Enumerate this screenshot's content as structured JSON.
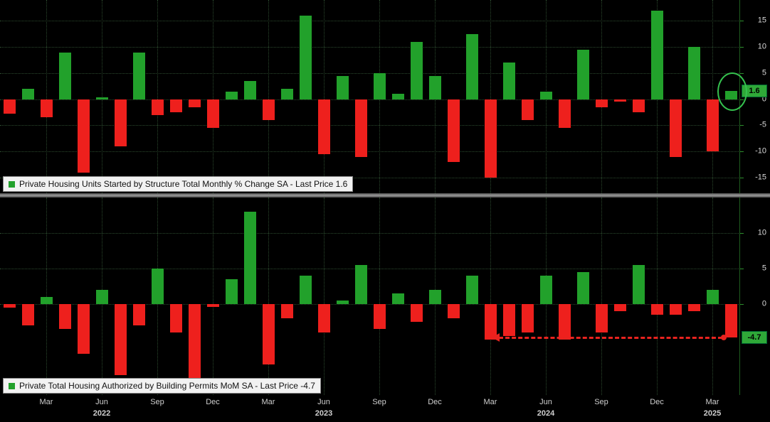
{
  "colors": {
    "background": "#000000",
    "up_bar": "#22a12b",
    "down_bar": "#ee201d",
    "grid": "#2c4a2e",
    "axis_text": "#cfcfcf",
    "last_price_box": "#2fa838",
    "legend_background": "#f2f2f2",
    "legend_text": "#111111",
    "annotation_circle": "#35c14e",
    "annotation_arrow": "#e8231f",
    "divider": "#9a9a9a"
  },
  "x_axis": {
    "months": [
      "Jan 2022",
      "Feb 2022",
      "Mar 2022",
      "Apr 2022",
      "May 2022",
      "Jun 2022",
      "Jul 2022",
      "Aug 2022",
      "Sep 2022",
      "Oct 2022",
      "Nov 2022",
      "Dec 2022",
      "Jan 2023",
      "Feb 2023",
      "Mar 2023",
      "Apr 2023",
      "May 2023",
      "Jun 2023",
      "Jul 2023",
      "Aug 2023",
      "Sep 2023",
      "Oct 2023",
      "Nov 2023",
      "Dec 2023",
      "Jan 2024",
      "Feb 2024",
      "Mar 2024",
      "Apr 2024",
      "May 2024",
      "Jun 2024",
      "Jul 2024",
      "Aug 2024",
      "Sep 2024",
      "Oct 2024",
      "Nov 2024",
      "Dec 2024",
      "Jan 2025",
      "Feb 2025",
      "Mar 2025",
      "Apr 2025"
    ],
    "quarter_ticks": [
      {
        "index": 2,
        "label": "Mar"
      },
      {
        "index": 5,
        "label": "Jun"
      },
      {
        "index": 8,
        "label": "Sep"
      },
      {
        "index": 11,
        "label": "Dec"
      },
      {
        "index": 14,
        "label": "Mar"
      },
      {
        "index": 17,
        "label": "Jun"
      },
      {
        "index": 20,
        "label": "Sep"
      },
      {
        "index": 23,
        "label": "Dec"
      },
      {
        "index": 26,
        "label": "Mar"
      },
      {
        "index": 29,
        "label": "Jun"
      },
      {
        "index": 32,
        "label": "Sep"
      },
      {
        "index": 35,
        "label": "Dec"
      },
      {
        "index": 38,
        "label": "Mar"
      }
    ],
    "year_labels": [
      {
        "index": 5,
        "label": "2022"
      },
      {
        "index": 17,
        "label": "2023"
      },
      {
        "index": 29,
        "label": "2024"
      },
      {
        "index": 38,
        "label": "2025"
      }
    ]
  },
  "chart_data": [
    {
      "type": "bar",
      "title": "Private Housing Units Started by Structure Total Monthly % Change SA",
      "legend": "Private Housing Units Started by Structure Total Monthly % Change SA - Last Price 1.6",
      "last_price": 1.6,
      "last_price_label": "1.6",
      "ylim": [
        -18,
        19
      ],
      "yticks": [
        15,
        10,
        5,
        0,
        -5,
        -10,
        -15
      ],
      "values": [
        -2.7,
        2.0,
        -3.5,
        9.0,
        -14.0,
        0.3,
        -9.0,
        9.0,
        -3.0,
        -2.5,
        -1.5,
        -5.5,
        1.5,
        3.5,
        -4.0,
        2.0,
        16.0,
        -10.5,
        4.5,
        -11.0,
        5.0,
        1.0,
        11.0,
        4.5,
        -12.0,
        12.5,
        -15.0,
        7.0,
        -4.0,
        1.5,
        -5.5,
        9.5,
        -1.5,
        -0.5,
        -2.5,
        17.0,
        -11.0,
        10.0,
        -10.0,
        1.6
      ],
      "annotations": [
        {
          "type": "ellipse",
          "index": 39,
          "note": "last bar circled"
        }
      ]
    },
    {
      "type": "bar",
      "title": "Private Total Housing Authorized by Building Permits MoM SA",
      "legend": "Private Total Housing Authorized by Building Permits MoM SA - Last Price -4.7",
      "last_price": -4.7,
      "last_price_label": "-4.7",
      "ylim": [
        -12.8,
        15
      ],
      "yticks": [
        10,
        5,
        0
      ],
      "values": [
        -0.5,
        -3.0,
        1.0,
        -3.5,
        -7.0,
        2.0,
        -10.0,
        -3.0,
        5.0,
        -4.0,
        -10.5,
        -0.4,
        3.5,
        13.0,
        -8.5,
        -2.0,
        4.0,
        -4.0,
        0.5,
        5.5,
        -3.5,
        1.5,
        -2.5,
        2.0,
        -2.0,
        4.0,
        -5.0,
        -4.5,
        -4.0,
        4.0,
        -5.0,
        4.5,
        -4.0,
        -1.0,
        5.5,
        -1.5,
        -1.5,
        -1.0,
        2.0,
        -4.7
      ],
      "annotations": [
        {
          "type": "arrow-left",
          "y": -4.7,
          "from_index": 26,
          "to_index": 39,
          "note": "dashed arrow back to Mar 2024 level"
        }
      ]
    }
  ]
}
